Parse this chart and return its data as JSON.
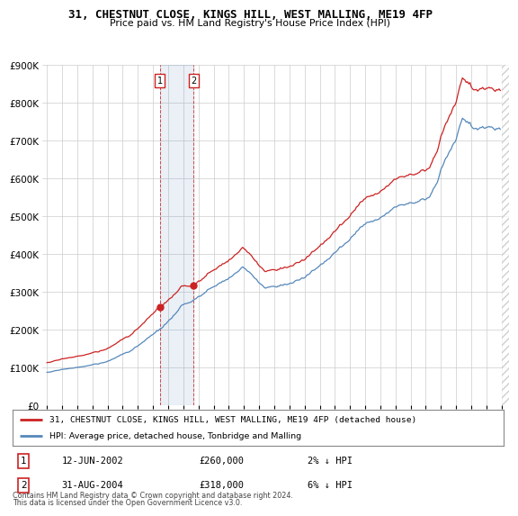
{
  "title1": "31, CHESTNUT CLOSE, KINGS HILL, WEST MALLING, ME19 4FP",
  "title2": "Price paid vs. HM Land Registry's House Price Index (HPI)",
  "hpi_color": "#5588bb",
  "price_color": "#cc2222",
  "transaction1_price": 260000,
  "transaction1_x": 2002.45,
  "transaction2_price": 318000,
  "transaction2_x": 2004.67,
  "legend_line1": "31, CHESTNUT CLOSE, KINGS HILL, WEST MALLING, ME19 4FP (detached house)",
  "legend_line2": "HPI: Average price, detached house, Tonbridge and Malling",
  "footer1": "Contains HM Land Registry data © Crown copyright and database right 2024.",
  "footer2": "This data is licensed under the Open Government Licence v3.0.",
  "table_row1": [
    "1",
    "12-JUN-2002",
    "£260,000",
    "2% ↓ HPI"
  ],
  "table_row2": [
    "2",
    "31-AUG-2004",
    "£318,000",
    "6% ↓ HPI"
  ],
  "ylim": [
    0,
    900000
  ],
  "yticks": [
    0,
    100000,
    200000,
    300000,
    400000,
    500000,
    600000,
    700000,
    800000,
    900000
  ],
  "xlim_left": 1994.7,
  "xlim_right": 2025.5,
  "background_color": "#ffffff",
  "grid_color": "#cccccc"
}
